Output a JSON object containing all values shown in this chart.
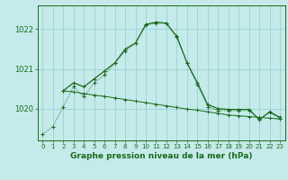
{
  "title": "Graphe pression niveau de la mer (hPa)",
  "bg_color": "#c5eaea",
  "grid_color": "#8ecece",
  "line_color": "#1a6b1a",
  "ylim": [
    1019.2,
    1022.6
  ],
  "yticks": [
    1020,
    1021,
    1022
  ],
  "xlim": [
    -0.5,
    23.5
  ],
  "xticks": [
    0,
    1,
    2,
    3,
    4,
    5,
    6,
    7,
    8,
    9,
    10,
    11,
    12,
    13,
    14,
    15,
    16,
    17,
    18,
    19,
    20,
    21,
    22,
    23
  ],
  "series1_x": [
    0,
    1,
    2,
    3,
    4,
    5,
    6,
    7,
    8,
    9,
    10,
    11,
    12,
    13,
    14,
    15,
    16,
    17,
    18,
    19,
    20,
    21,
    22,
    23
  ],
  "series1_y": [
    1019.35,
    1019.55,
    1020.05,
    1020.55,
    1020.3,
    1020.65,
    1020.85,
    1021.15,
    1021.45,
    1021.65,
    1022.1,
    1022.15,
    1022.15,
    1021.8,
    1021.15,
    1020.6,
    1020.05,
    1019.95,
    1019.95,
    1019.95,
    1019.95,
    1019.75,
    1019.9,
    1019.75
  ],
  "series2_x": [
    2,
    3,
    4,
    5,
    6,
    7,
    8,
    9,
    10,
    11,
    12,
    13,
    14,
    15,
    16,
    17,
    18,
    19,
    20,
    21,
    22,
    23
  ],
  "series2_y": [
    1020.45,
    1020.42,
    1020.38,
    1020.34,
    1020.31,
    1020.27,
    1020.23,
    1020.19,
    1020.15,
    1020.11,
    1020.07,
    1020.03,
    1019.99,
    1019.96,
    1019.92,
    1019.88,
    1019.84,
    1019.82,
    1019.8,
    1019.78,
    1019.76,
    1019.74
  ],
  "series3_x": [
    2,
    3,
    4,
    5,
    6,
    7,
    8,
    9,
    10,
    11,
    12,
    13,
    14,
    15,
    16,
    17,
    18,
    19,
    20,
    21,
    22,
    23
  ],
  "series3_y": [
    1020.45,
    1020.65,
    1020.55,
    1020.75,
    1020.95,
    1021.15,
    1021.5,
    1021.65,
    1022.12,
    1022.18,
    1022.15,
    1021.82,
    1021.15,
    1020.65,
    1020.1,
    1020.0,
    1019.98,
    1019.98,
    1019.98,
    1019.72,
    1019.92,
    1019.78
  ]
}
